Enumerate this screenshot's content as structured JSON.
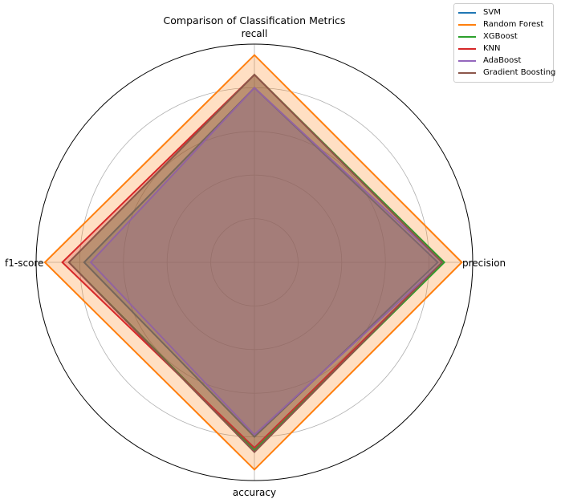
{
  "chart_data": {
    "type": "radar",
    "title": "Comparison of Classification Metrics",
    "axes": [
      "precision",
      "recall",
      "f1-score",
      "accuracy"
    ],
    "rlim": [
      0,
      1
    ],
    "grid": true,
    "legend_position": "top-right",
    "series": [
      {
        "name": "SVM",
        "color": "#1f77b4",
        "values": [
          0.84,
          0.8,
          0.78,
          0.8
        ]
      },
      {
        "name": "Random Forest",
        "color": "#ff7f0e",
        "values": [
          0.95,
          0.95,
          0.96,
          0.95
        ]
      },
      {
        "name": "XGBoost",
        "color": "#2ca02c",
        "values": [
          0.87,
          0.86,
          0.85,
          0.86
        ]
      },
      {
        "name": "KNN",
        "color": "#d62728",
        "values": [
          0.86,
          0.86,
          0.88,
          0.85
        ]
      },
      {
        "name": "AdaBoost",
        "color": "#9467bd",
        "values": [
          0.86,
          0.8,
          0.75,
          0.79
        ]
      },
      {
        "name": "Gradient Boosting",
        "color": "#8c564b",
        "values": [
          0.86,
          0.86,
          0.85,
          0.87
        ]
      }
    ]
  }
}
